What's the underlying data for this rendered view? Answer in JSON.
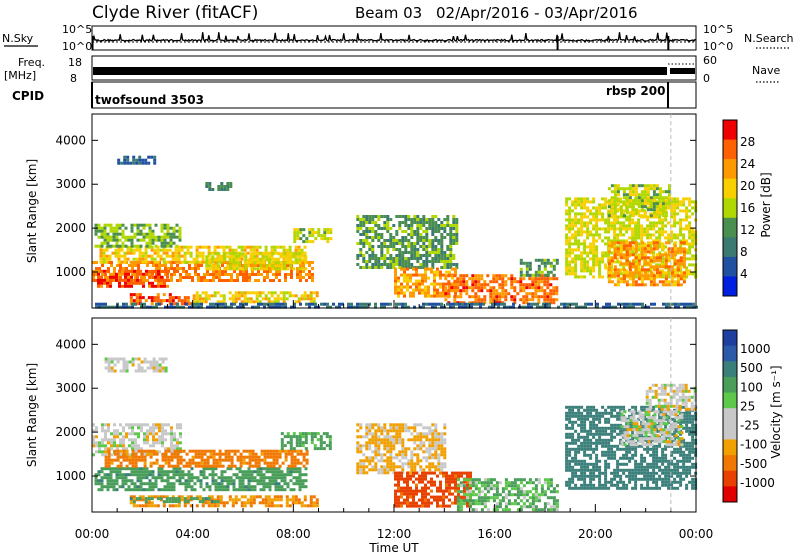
{
  "header": {
    "station": "Clyde River (fitACF)",
    "beam": "Beam 03",
    "dates": "02/Apr/2016 - 03/Apr/2016"
  },
  "top_panels": {
    "nsky_label": "N.Sky",
    "nsky_tick_top": "10^5",
    "nsky_tick_bottom": "10^0",
    "nsearch_label": "N.Search",
    "nsearch_tick_top": "10^5",
    "nsearch_tick_bottom": "10^0",
    "freq_label": "Freq.",
    "freq_unit": "[MHz]",
    "freq_tick_top": "18",
    "freq_tick_bottom": "8",
    "nave_label": "Nave",
    "nave_tick_top": "60",
    "nave_tick_bottom": "0",
    "cpid_label": "CPID",
    "cpid_1": "twofsound 3503",
    "cpid_2": "rbsp 200"
  },
  "power_colorbar": {
    "label": "Power [dB]",
    "ticks": [
      "28",
      "24",
      "20",
      "16",
      "12",
      "8",
      "4"
    ],
    "colors": [
      "#ee0000",
      "#ff6000",
      "#ff9900",
      "#f8d000",
      "#b0d800",
      "#4a8e50",
      "#3a7a70",
      "#2050a0",
      "#0020e0"
    ]
  },
  "velocity_colorbar": {
    "label": "Velocity [m s⁻¹]",
    "ticks": [
      "1000",
      "500",
      "100",
      "25",
      "-25",
      "-100",
      "-500",
      "-1000"
    ],
    "colors": [
      "#1f3fa0",
      "#2a5aa8",
      "#3a7f7a",
      "#4a9e5a",
      "#5dc84a",
      "#c8c8c8",
      "#c8c8c8",
      "#f0a000",
      "#f07800",
      "#e84000",
      "#e00000"
    ]
  },
  "chart_data": [
    {
      "type": "heatmap",
      "panel": "power",
      "ylabel": "Slant Range [km]",
      "xlabel": "Time UT",
      "xticks": [
        "00:00",
        "04:00",
        "08:00",
        "12:00",
        "16:00",
        "20:00",
        "00:00"
      ],
      "yticks": [
        "1000",
        "2000",
        "3000",
        "4000"
      ],
      "x_hours": [
        0,
        24
      ],
      "y_km": [
        180,
        4600
      ],
      "regions": [
        {
          "t0": 0.0,
          "t1": 8.8,
          "r0": 800,
          "r1": 1250,
          "v": 26
        },
        {
          "t0": 0.2,
          "t1": 3.0,
          "r0": 700,
          "r1": 1050,
          "v": 29
        },
        {
          "t0": 0.3,
          "t1": 8.5,
          "r0": 1250,
          "r1": 1600,
          "v": 20
        },
        {
          "t0": 0.1,
          "t1": 3.5,
          "r0": 1600,
          "r1": 2100,
          "v": 14
        },
        {
          "t0": 4.5,
          "t1": 8.5,
          "r0": 1100,
          "r1": 1450,
          "v": 18
        },
        {
          "t0": 1.5,
          "t1": 4.0,
          "r0": 300,
          "r1": 520,
          "v": 28
        },
        {
          "t0": 4.0,
          "t1": 9.0,
          "r0": 350,
          "r1": 560,
          "v": 20
        },
        {
          "t0": 8.0,
          "t1": 9.5,
          "r0": 1700,
          "r1": 2000,
          "v": 16
        },
        {
          "t0": 10.5,
          "t1": 14.5,
          "r0": 1100,
          "r1": 2300,
          "v": 12
        },
        {
          "t0": 12.0,
          "t1": 14.5,
          "r0": 450,
          "r1": 1100,
          "v": 24
        },
        {
          "t0": 14.0,
          "t1": 18.5,
          "r0": 300,
          "r1": 950,
          "v": 27
        },
        {
          "t0": 17.0,
          "t1": 18.5,
          "r0": 900,
          "r1": 1300,
          "v": 12
        },
        {
          "t0": 18.8,
          "t1": 24.0,
          "r0": 900,
          "r1": 2700,
          "v": 18
        },
        {
          "t0": 20.5,
          "t1": 23.5,
          "r0": 700,
          "r1": 1700,
          "v": 24
        },
        {
          "t0": 20.5,
          "t1": 23.0,
          "r0": 2300,
          "r1": 3000,
          "v": 16
        },
        {
          "t0": 1.0,
          "t1": 2.5,
          "r0": 3450,
          "r1": 3650,
          "v": 6
        },
        {
          "t0": 4.5,
          "t1": 5.5,
          "r0": 2850,
          "r1": 3050,
          "v": 10
        },
        {
          "t0": 0.0,
          "t1": 24.0,
          "r0": 180,
          "r1": 300,
          "v": 6
        }
      ]
    },
    {
      "type": "heatmap",
      "panel": "velocity",
      "ylabel": "Slant Range [km]",
      "xlabel": "Time UT",
      "xticks": [
        "00:00",
        "04:00",
        "08:00",
        "12:00",
        "16:00",
        "20:00",
        "00:00"
      ],
      "yticks": [
        "1000",
        "2000",
        "3000",
        "4000"
      ],
      "x_hours": [
        0,
        24
      ],
      "y_km": [
        180,
        4600
      ],
      "regions": [
        {
          "t0": 0.0,
          "t1": 3.5,
          "r0": 1500,
          "r1": 2200,
          "v": 0
        },
        {
          "t0": 0.1,
          "t1": 8.5,
          "r0": 700,
          "r1": 1200,
          "v": 150
        },
        {
          "t0": 0.5,
          "t1": 8.5,
          "r0": 1200,
          "r1": 1600,
          "v": -200
        },
        {
          "t0": 1.5,
          "t1": 9.0,
          "r0": 300,
          "r1": 560,
          "v": -150
        },
        {
          "t0": 1.5,
          "t1": 5.0,
          "r0": 420,
          "r1": 520,
          "v": 150
        },
        {
          "t0": 7.5,
          "t1": 9.5,
          "r0": 1600,
          "r1": 2000,
          "v": 120
        },
        {
          "t0": 10.5,
          "t1": 14.0,
          "r0": 1100,
          "r1": 2200,
          "v": -60
        },
        {
          "t0": 12.0,
          "t1": 15.0,
          "r0": 300,
          "r1": 1100,
          "v": -400
        },
        {
          "t0": 14.5,
          "t1": 18.5,
          "r0": 250,
          "r1": 950,
          "v": 80
        },
        {
          "t0": 18.8,
          "t1": 24.0,
          "r0": 700,
          "r1": 2600,
          "v": 300
        },
        {
          "t0": 21.0,
          "t1": 23.5,
          "r0": 1700,
          "r1": 2500,
          "v": 0
        },
        {
          "t0": 22.0,
          "t1": 24.0,
          "r0": 2500,
          "r1": 3100,
          "v": 0
        },
        {
          "t0": 0.5,
          "t1": 3.0,
          "r0": 3400,
          "r1": 3700,
          "v": 0
        }
      ]
    }
  ]
}
